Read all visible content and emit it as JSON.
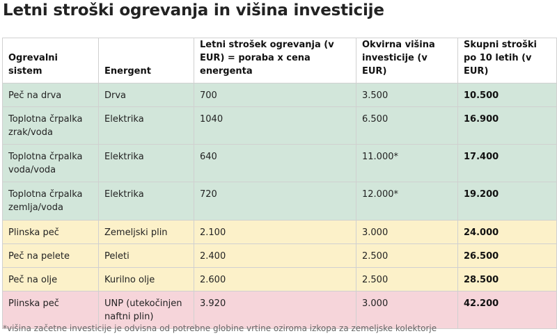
{
  "title": "Letni stroški ogrevanja in višina investicije",
  "table": {
    "headers": [
      "Ogrevalni sistem",
      "Energent",
      "Letni strošek ogrevanja (v EUR) = poraba x cena energenta",
      "Okvirna višina investicije (v EUR)",
      "Skupni stroški po 10 letih (v EUR)"
    ],
    "rows": [
      {
        "system": "Peč na drva",
        "energent": "Drva",
        "annual": "700",
        "investment": "3.500",
        "total": "10.500",
        "color": "#d2e6da"
      },
      {
        "system": "Toplotna črpalka zrak/voda",
        "energent": "Elektrika",
        "annual": "1040",
        "investment": "6.500",
        "total": "16.900",
        "color": "#d2e6da"
      },
      {
        "system": "Toplotna črpalka voda/voda",
        "energent": "Elektrika",
        "annual": "640",
        "investment": "11.000*",
        "total": "17.400",
        "color": "#d2e6da"
      },
      {
        "system": "Toplotna črpalka zemlja/voda",
        "energent": "Elektrika",
        "annual": "720",
        "investment": "12.000*",
        "total": "19.200",
        "color": "#d2e6da"
      },
      {
        "system": "Plinska peč",
        "energent": "Zemeljski plin",
        "annual": "2.100",
        "investment": "3.000",
        "total": "24.000",
        "color": "#fcf1c9"
      },
      {
        "system": "Peč na pelete",
        "energent": "Peleti",
        "annual": "2.400",
        "investment": "2.500",
        "total": "26.500",
        "color": "#fcf1c9"
      },
      {
        "system": "Peč na olje",
        "energent": "Kurilno olje",
        "annual": "2.600",
        "investment": "2.500",
        "total": "28.500",
        "color": "#fcf1c9"
      },
      {
        "system": "Plinska peč",
        "energent": "UNP (utekočinjen naftni plin)",
        "annual": "3.920",
        "investment": "3.000",
        "total": "42.200",
        "color": "#f6d5da"
      }
    ]
  },
  "footnote": "*višina začetne investicije je odvisna od potrebne globine vrtine oziroma izkopa za zemeljske kolektorje"
}
